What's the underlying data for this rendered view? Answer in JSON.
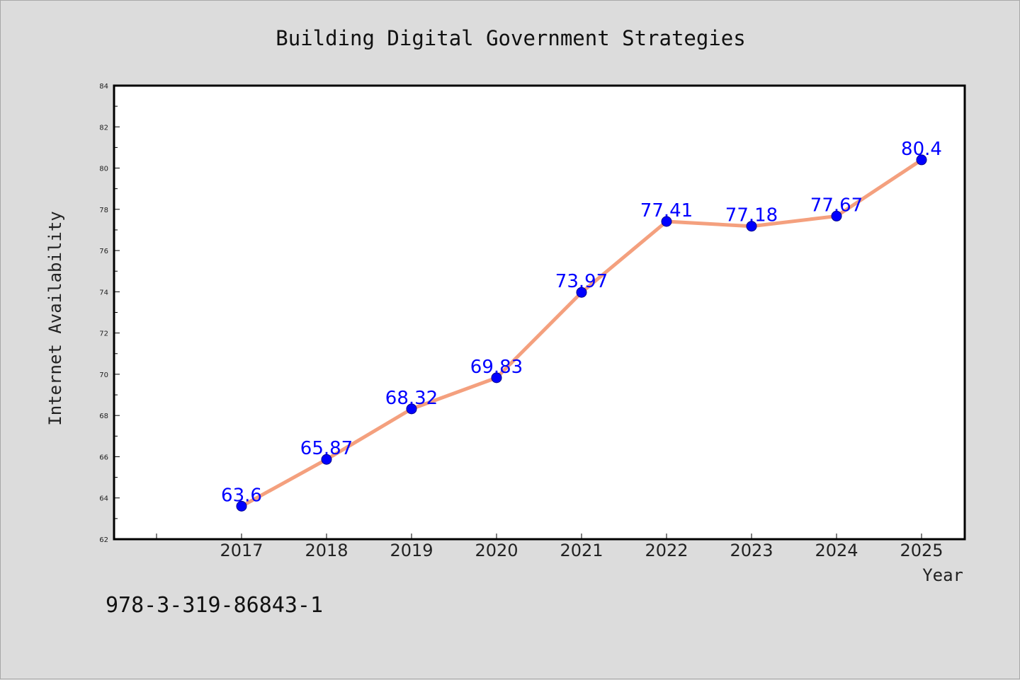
{
  "chart_data": {
    "type": "line",
    "title": "Building Digital Government Strategies",
    "xlabel": "Year",
    "ylabel": "Internet Availability",
    "categories": [
      "2017",
      "2018",
      "2019",
      "2020",
      "2021",
      "2022",
      "2023",
      "2024",
      "2025"
    ],
    "series": [
      {
        "values": [
          63.6,
          65.87,
          68.32,
          69.83,
          73.97,
          77.41,
          77.18,
          77.67,
          80.4
        ],
        "labels": [
          "63.6",
          "65.87",
          "68.32",
          "69.83",
          "73.97",
          "77.41",
          "77.18",
          "77.67",
          "80.4"
        ]
      }
    ],
    "ylim": [
      62,
      84
    ],
    "yticks": [
      "62",
      "64",
      "66",
      "68",
      "70",
      "72",
      "74",
      "76",
      "78",
      "80",
      "82",
      "84"
    ],
    "grid": false,
    "line_color": "#f4a07e",
    "marker_color": "#0000ff",
    "label_color": "#0000ff",
    "background_color": "#dcdcdc",
    "plot_background_color": "#ffffff"
  },
  "footer": {
    "isbn": "978-3-319-86843-1"
  }
}
